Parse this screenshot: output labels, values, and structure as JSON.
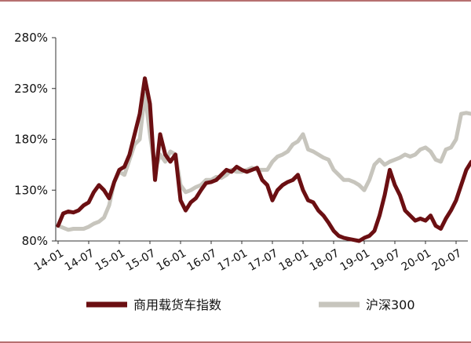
{
  "chart_data": {
    "type": "line",
    "title": "",
    "xlabel": "",
    "ylabel": "",
    "ylim": [
      80,
      280
    ],
    "yticks": [
      "80%",
      "130%",
      "180%",
      "230%",
      "280%"
    ],
    "xticks": [
      "14-01",
      "14-07",
      "15-01",
      "15-07",
      "16-01",
      "16-07",
      "17-01",
      "17-07",
      "18-01",
      "18-07",
      "19-01",
      "19-07",
      "20-01",
      "20-07"
    ],
    "grid": false,
    "legend_position": "bottom",
    "series": [
      {
        "name": "商用载货车指数",
        "color": "#6b0f12",
        "x": [
          "14-01",
          "14-02",
          "14-03",
          "14-04",
          "14-05",
          "14-06",
          "14-07",
          "14-08",
          "14-09",
          "14-10",
          "14-11",
          "14-12",
          "15-01",
          "15-02",
          "15-03",
          "15-04",
          "15-05",
          "15-06",
          "15-07",
          "15-08",
          "15-09",
          "15-10",
          "15-11",
          "15-12",
          "16-01",
          "16-02",
          "16-03",
          "16-04",
          "16-05",
          "16-06",
          "16-07",
          "16-08",
          "16-09",
          "16-10",
          "16-11",
          "16-12",
          "17-01",
          "17-02",
          "17-03",
          "17-04",
          "17-05",
          "17-06",
          "17-07",
          "17-08",
          "17-09",
          "17-10",
          "17-11",
          "17-12",
          "18-01",
          "18-02",
          "18-03",
          "18-04",
          "18-05",
          "18-06",
          "18-07",
          "18-08",
          "18-09",
          "18-10",
          "18-11",
          "18-12",
          "19-01",
          "19-02",
          "19-03",
          "19-04",
          "19-05",
          "19-06",
          "19-07",
          "19-08",
          "19-09",
          "19-10",
          "19-11",
          "19-12",
          "20-01",
          "20-02",
          "20-03",
          "20-04",
          "20-05",
          "20-06",
          "20-07",
          "20-08",
          "20-09",
          "20-10"
        ],
        "values": [
          95,
          107,
          109,
          108,
          110,
          115,
          118,
          128,
          135,
          130,
          122,
          138,
          150,
          153,
          165,
          185,
          205,
          240,
          215,
          140,
          185,
          165,
          158,
          165,
          120,
          110,
          118,
          122,
          130,
          137,
          138,
          140,
          145,
          150,
          148,
          153,
          150,
          148,
          150,
          152,
          140,
          135,
          120,
          130,
          135,
          138,
          140,
          145,
          130,
          120,
          118,
          110,
          105,
          98,
          90,
          85,
          83,
          82,
          81,
          80,
          83,
          85,
          90,
          105,
          125,
          150,
          135,
          125,
          110,
          105,
          100,
          102,
          100,
          105,
          95,
          92,
          102,
          110,
          120,
          135,
          150,
          158
        ]
      },
      {
        "name": "沪深300",
        "color": "#c7c5bd",
        "x": [
          "14-01",
          "14-02",
          "14-03",
          "14-04",
          "14-05",
          "14-06",
          "14-07",
          "14-08",
          "14-09",
          "14-10",
          "14-11",
          "14-12",
          "15-01",
          "15-02",
          "15-03",
          "15-04",
          "15-05",
          "15-06",
          "15-07",
          "15-08",
          "15-09",
          "15-10",
          "15-11",
          "15-12",
          "16-01",
          "16-02",
          "16-03",
          "16-04",
          "16-05",
          "16-06",
          "16-07",
          "16-08",
          "16-09",
          "16-10",
          "16-11",
          "16-12",
          "17-01",
          "17-02",
          "17-03",
          "17-04",
          "17-05",
          "17-06",
          "17-07",
          "17-08",
          "17-09",
          "17-10",
          "17-11",
          "17-12",
          "18-01",
          "18-02",
          "18-03",
          "18-04",
          "18-05",
          "18-06",
          "18-07",
          "18-08",
          "18-09",
          "18-10",
          "18-11",
          "18-12",
          "19-01",
          "19-02",
          "19-03",
          "19-04",
          "19-05",
          "19-06",
          "19-07",
          "19-08",
          "19-09",
          "19-10",
          "19-11",
          "19-12",
          "20-01",
          "20-02",
          "20-03",
          "20-04",
          "20-05",
          "20-06",
          "20-07",
          "20-08",
          "20-09",
          "20-10"
        ],
        "values": [
          95,
          93,
          91,
          92,
          92,
          92,
          94,
          97,
          99,
          103,
          115,
          138,
          148,
          145,
          160,
          175,
          180,
          225,
          185,
          150,
          165,
          158,
          168,
          165,
          135,
          128,
          130,
          133,
          135,
          140,
          140,
          143,
          142,
          145,
          150,
          148,
          148,
          150,
          152,
          150,
          150,
          150,
          158,
          163,
          165,
          168,
          175,
          178,
          185,
          170,
          168,
          165,
          162,
          160,
          150,
          145,
          140,
          140,
          138,
          135,
          130,
          140,
          155,
          160,
          155,
          158,
          160,
          162,
          165,
          163,
          165,
          170,
          172,
          168,
          160,
          158,
          170,
          172,
          180,
          205,
          206,
          205
        ]
      }
    ]
  }
}
